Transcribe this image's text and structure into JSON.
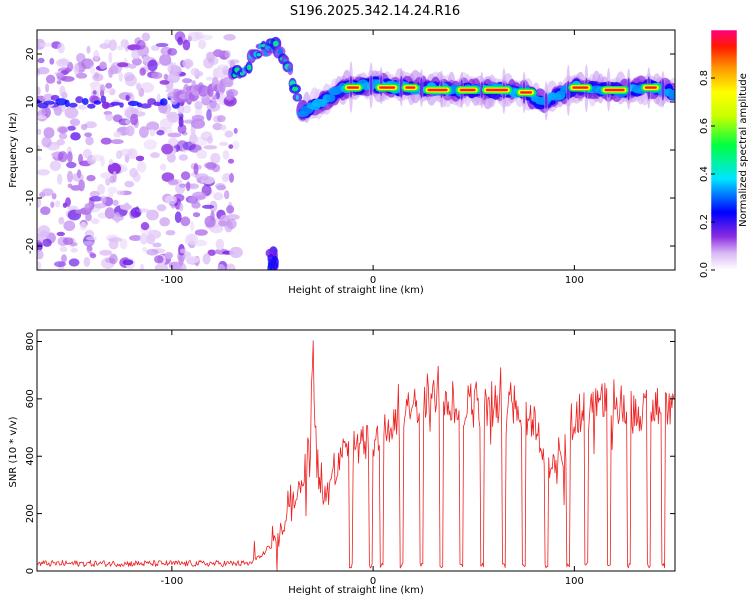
{
  "title": "S196.2025.342.14.24.R16",
  "chart_data": [
    {
      "type": "heatmap",
      "xlabel": "Height of straight line (km)",
      "ylabel": "Frequency (Hz)",
      "xlim": [
        -167,
        150
      ],
      "ylim": [
        -25,
        25
      ],
      "xticks": [
        -100,
        0,
        100
      ],
      "yticks": [
        -20,
        -10,
        0,
        10,
        20
      ],
      "colorbar": {
        "label": "Normalized spectral amplitude",
        "range": [
          0,
          1
        ],
        "ticks": [
          0.0,
          0.2,
          0.4,
          0.6,
          0.8
        ]
      },
      "noise_region": {
        "x": [
          -167,
          -68
        ],
        "y": [
          -25,
          24
        ]
      },
      "burst_band": [
        {
          "x": -100,
          "y": 11
        },
        {
          "x": -80,
          "y": 13
        },
        {
          "x": -70,
          "y": 15
        },
        {
          "x": -62,
          "y": 18
        },
        {
          "x": -55,
          "y": 21
        },
        {
          "x": -48,
          "y": 22
        },
        {
          "x": -42,
          "y": 17
        },
        {
          "x": -37,
          "y": 10
        }
      ],
      "low_burst": {
        "x": -50,
        "y": -22
      },
      "signal_band": [
        {
          "x": -35,
          "y": 8
        },
        {
          "x": -25,
          "y": 10
        },
        {
          "x": -15,
          "y": 13
        },
        {
          "x": 0,
          "y": 13.5
        },
        {
          "x": 20,
          "y": 13
        },
        {
          "x": 40,
          "y": 12.5
        },
        {
          "x": 60,
          "y": 12.5
        },
        {
          "x": 75,
          "y": 12
        },
        {
          "x": 85,
          "y": 10
        },
        {
          "x": 100,
          "y": 13
        },
        {
          "x": 120,
          "y": 12.5
        },
        {
          "x": 140,
          "y": 13
        },
        {
          "x": 150,
          "y": 12
        }
      ],
      "peak_segments": [
        {
          "x": [
            -14,
            -6
          ],
          "y": 13
        },
        {
          "x": [
            2,
            12
          ],
          "y": 13
        },
        {
          "x": [
            15,
            22
          ],
          "y": 13
        },
        {
          "x": [
            26,
            38
          ],
          "y": 12.5
        },
        {
          "x": [
            42,
            52
          ],
          "y": 12.5
        },
        {
          "x": [
            55,
            68
          ],
          "y": 12.5
        },
        {
          "x": [
            72,
            80
          ],
          "y": 12
        },
        {
          "x": [
            98,
            108
          ],
          "y": 13
        },
        {
          "x": [
            114,
            126
          ],
          "y": 12.5
        },
        {
          "x": [
            134,
            142
          ],
          "y": 13
        }
      ]
    },
    {
      "type": "line",
      "xlabel": "Height of straight line (km)",
      "ylabel": "SNR (10 * v/v)",
      "xlim": [
        -167,
        150
      ],
      "ylim": [
        0,
        840
      ],
      "xticks": [
        -100,
        0,
        100
      ],
      "yticks": [
        0,
        200,
        400,
        600,
        800
      ],
      "color": "#ee2020",
      "baseline": [
        {
          "x": -167,
          "y": 25
        },
        {
          "x": -60,
          "y": 25
        }
      ],
      "envelope": [
        {
          "x": -167,
          "y": 30
        },
        {
          "x": -100,
          "y": 30
        },
        {
          "x": -60,
          "y": 35
        },
        {
          "x": -55,
          "y": 60
        },
        {
          "x": -50,
          "y": 100
        },
        {
          "x": -45,
          "y": 150
        },
        {
          "x": -40,
          "y": 250
        },
        {
          "x": -35,
          "y": 350
        },
        {
          "x": -31,
          "y": 480
        },
        {
          "x": -30,
          "y": 840
        },
        {
          "x": -28,
          "y": 380
        },
        {
          "x": -25,
          "y": 280
        },
        {
          "x": -20,
          "y": 330
        },
        {
          "x": -15,
          "y": 430
        },
        {
          "x": -10,
          "y": 420
        },
        {
          "x": -5,
          "y": 470
        },
        {
          "x": 0,
          "y": 470
        },
        {
          "x": 5,
          "y": 510
        },
        {
          "x": 10,
          "y": 520
        },
        {
          "x": 15,
          "y": 560
        },
        {
          "x": 20,
          "y": 600
        },
        {
          "x": 25,
          "y": 640
        },
        {
          "x": 30,
          "y": 640
        },
        {
          "x": 40,
          "y": 620
        },
        {
          "x": 50,
          "y": 600
        },
        {
          "x": 60,
          "y": 620
        },
        {
          "x": 70,
          "y": 620
        },
        {
          "x": 80,
          "y": 550
        },
        {
          "x": 85,
          "y": 430
        },
        {
          "x": 88,
          "y": 380
        },
        {
          "x": 92,
          "y": 380
        },
        {
          "x": 96,
          "y": 460
        },
        {
          "x": 100,
          "y": 580
        },
        {
          "x": 110,
          "y": 600
        },
        {
          "x": 120,
          "y": 620
        },
        {
          "x": 130,
          "y": 580
        },
        {
          "x": 140,
          "y": 600
        },
        {
          "x": 150,
          "y": 620
        }
      ],
      "dropouts": [
        -11,
        -1,
        4,
        14,
        24,
        34,
        44,
        54,
        65,
        75,
        86,
        97,
        106,
        117,
        127,
        137,
        144
      ]
    }
  ]
}
